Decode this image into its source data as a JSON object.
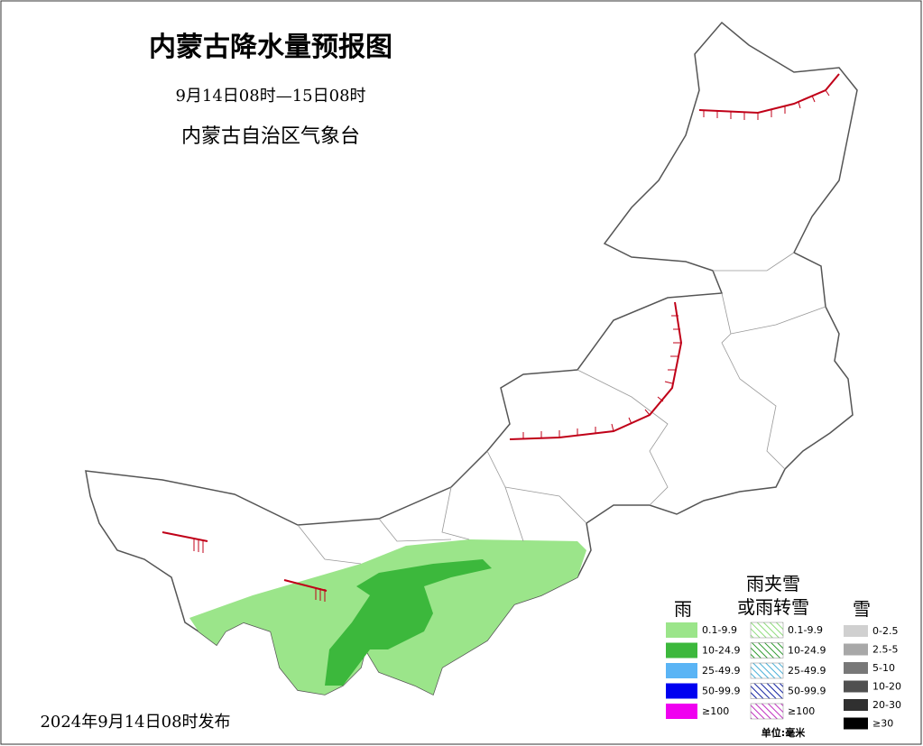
{
  "header": {
    "title": "内蒙古降水量预报图",
    "period": "9月14日08时—15日08时",
    "issuer": "内蒙古自治区气象台"
  },
  "legend": {
    "rain": {
      "title": "雨",
      "items": [
        "0.1-9.9",
        "10-24.9",
        "25-49.9",
        "50-99.9",
        "≥100"
      ]
    },
    "sleet": {
      "title": [
        "雨夹雪",
        "或雨转雪"
      ],
      "items": [
        "0.1-9.9",
        "10-24.9",
        "25-49.9",
        "50-99.9",
        "≥100"
      ]
    },
    "snow": {
      "title": "雪",
      "items": [
        "0-2.5",
        "2.5-5",
        "5-10",
        "10-20",
        "20-30",
        "≥30"
      ]
    },
    "unit": "单位:毫米"
  },
  "footer": "2024年9月14日08时发布"
}
